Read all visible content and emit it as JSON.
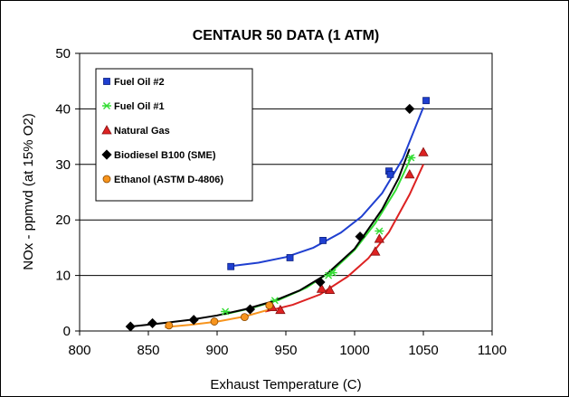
{
  "chart_data": {
    "type": "scatter",
    "title": "CENTAUR 50 DATA (1 ATM)",
    "xlabel": "Exhaust Temperature (C)",
    "ylabel": "NOx - ppmvd (at 15% O2)",
    "xlim": [
      800,
      1100
    ],
    "ylim": [
      0,
      50
    ],
    "xticks": [
      800,
      850,
      900,
      950,
      1000,
      1050,
      1100
    ],
    "yticks": [
      0,
      10,
      20,
      30,
      40,
      50
    ],
    "grid": "horizontal",
    "legend_position": "top-left",
    "series": [
      {
        "name": "Fuel Oil #2",
        "marker": "square",
        "color": "#1f3fd0",
        "edge": "#0a1f80",
        "points": [
          [
            910,
            11.6
          ],
          [
            953,
            13.2
          ],
          [
            977,
            16.3
          ],
          [
            1025,
            28.8
          ],
          [
            1026,
            28.2
          ],
          [
            1052,
            41.5
          ]
        ],
        "trend": [
          [
            910,
            11.7
          ],
          [
            930,
            12.3
          ],
          [
            950,
            13.3
          ],
          [
            970,
            15.0
          ],
          [
            990,
            17.7
          ],
          [
            1005,
            20.6
          ],
          [
            1020,
            24.8
          ],
          [
            1035,
            31.0
          ],
          [
            1050,
            40.3
          ]
        ]
      },
      {
        "name": "Fuel Oil #1",
        "marker": "star",
        "color": "#33dd33",
        "edge": "#22aa22",
        "points": [
          [
            906,
            3.5
          ],
          [
            942,
            5.5
          ],
          [
            981,
            10.0
          ],
          [
            984,
            10.5
          ],
          [
            1018,
            18.0
          ],
          [
            1041,
            31.2
          ]
        ],
        "trend": [
          [
            905,
            3.0
          ],
          [
            925,
            4.1
          ],
          [
            945,
            5.6
          ],
          [
            965,
            7.8
          ],
          [
            985,
            11.1
          ],
          [
            1000,
            14.6
          ],
          [
            1015,
            19.4
          ],
          [
            1030,
            25.4
          ],
          [
            1042,
            31.7
          ]
        ]
      },
      {
        "name": "Natural Gas",
        "marker": "triangle",
        "color": "#dd2222",
        "edge": "#881111",
        "points": [
          [
            940,
            4.3
          ],
          [
            946,
            3.8
          ],
          [
            976,
            7.6
          ],
          [
            982,
            7.4
          ],
          [
            1015,
            14.3
          ],
          [
            1018,
            16.6
          ],
          [
            1040,
            28.2
          ],
          [
            1050,
            32.2
          ]
        ],
        "trend": [
          [
            935,
            3.5
          ],
          [
            955,
            4.7
          ],
          [
            975,
            6.6
          ],
          [
            995,
            9.8
          ],
          [
            1010,
            13.1
          ],
          [
            1025,
            17.8
          ],
          [
            1040,
            24.6
          ],
          [
            1050,
            30.0
          ]
        ]
      },
      {
        "name": "Biodiesel B100 (SME)",
        "marker": "diamond",
        "color": "#000000",
        "edge": "#000000",
        "points": [
          [
            837,
            0.8
          ],
          [
            853,
            1.4
          ],
          [
            883,
            2.0
          ],
          [
            924,
            3.9
          ],
          [
            975,
            8.8
          ],
          [
            1004,
            17.0
          ],
          [
            1040,
            40.0
          ]
        ],
        "trend": [
          [
            837,
            0.8
          ],
          [
            860,
            1.4
          ],
          [
            880,
            2.0
          ],
          [
            900,
            2.8
          ],
          [
            920,
            3.9
          ],
          [
            940,
            5.3
          ],
          [
            960,
            7.3
          ],
          [
            980,
            10.3
          ],
          [
            1000,
            14.8
          ],
          [
            1020,
            21.9
          ],
          [
            1032,
            27.5
          ],
          [
            1040,
            32.8
          ]
        ]
      },
      {
        "name": "Ethanol (ASTM D-4806)",
        "marker": "circle",
        "color": "#f7941d",
        "edge": "#8a4a00",
        "points": [
          [
            865,
            1.0
          ],
          [
            898,
            1.7
          ],
          [
            920,
            2.5
          ],
          [
            938,
            4.6
          ]
        ],
        "trend": [
          [
            862,
            0.7
          ],
          [
            880,
            1.1
          ],
          [
            900,
            1.7
          ],
          [
            920,
            2.6
          ],
          [
            940,
            4.0
          ]
        ]
      }
    ]
  }
}
